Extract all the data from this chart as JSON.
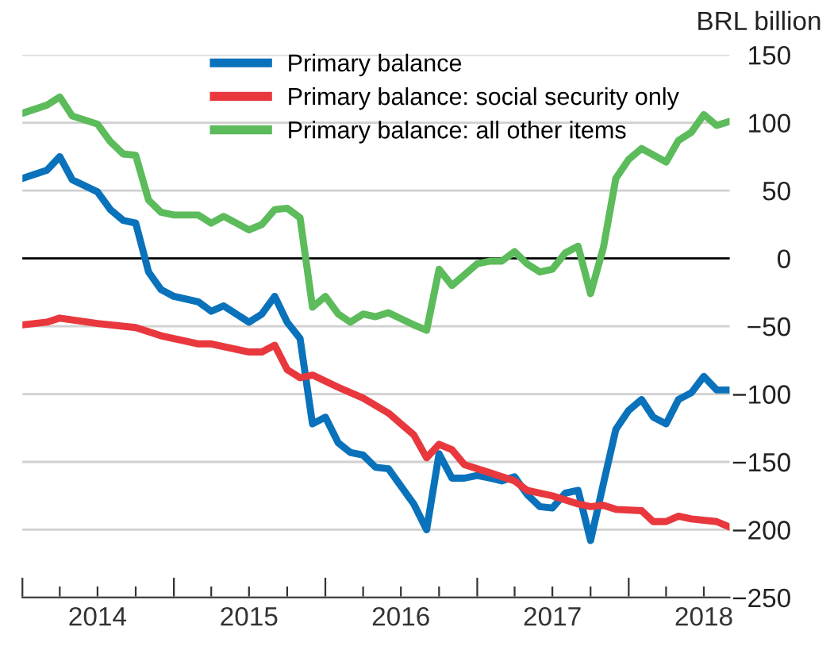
{
  "chart_data": {
    "type": "line",
    "ylabel": "BRL billion",
    "xlim": [
      "2014-01",
      "2018-09"
    ],
    "xticks": [
      {
        "value": "2014-01",
        "label": null
      },
      {
        "value": "2014-04",
        "label": null
      },
      {
        "value": "2014-07",
        "label": "2014"
      },
      {
        "value": "2014-10",
        "label": null
      },
      {
        "value": "2015-01",
        "label": null
      },
      {
        "value": "2015-04",
        "label": null
      },
      {
        "value": "2015-07",
        "label": "2015"
      },
      {
        "value": "2015-10",
        "label": null
      },
      {
        "value": "2016-01",
        "label": null
      },
      {
        "value": "2016-04",
        "label": null
      },
      {
        "value": "2016-07",
        "label": "2016"
      },
      {
        "value": "2016-10",
        "label": null
      },
      {
        "value": "2017-01",
        "label": null
      },
      {
        "value": "2017-04",
        "label": null
      },
      {
        "value": "2017-07",
        "label": "2017"
      },
      {
        "value": "2017-10",
        "label": null
      },
      {
        "value": "2018-01",
        "label": null
      },
      {
        "value": "2018-04",
        "label": null
      },
      {
        "value": "2018-07",
        "label": "2018"
      }
    ],
    "ylim": [
      -250,
      150
    ],
    "yticks": [
      150,
      100,
      50,
      0,
      {
        "value": -50,
        "label": "−50"
      },
      {
        "value": -100,
        "label": "−100"
      },
      {
        "value": -150,
        "label": "−150"
      },
      {
        "value": -200,
        "label": "−200"
      },
      {
        "value": -250,
        "label": "−250"
      }
    ],
    "grid": "y",
    "legend": "top",
    "marker": "none",
    "line_style": "solid",
    "ref_lines": [
      {
        "axis": "y",
        "value": 0,
        "color": "#000000"
      }
    ],
    "series": [
      {
        "name": "Primary balance",
        "color": "#0a72bb",
        "x": [
          "2014-01",
          "2014-03",
          "2014-04",
          "2014-05",
          "2014-07",
          "2014-08",
          "2014-09",
          "2014-10",
          "2014-11",
          "2014-12",
          "2015-01",
          "2015-03",
          "2015-04",
          "2015-05",
          "2015-07",
          "2015-08",
          "2015-09",
          "2015-10",
          "2015-11",
          "2015-12",
          "2016-01",
          "2016-02",
          "2016-03",
          "2016-04",
          "2016-05",
          "2016-06",
          "2016-08",
          "2016-09",
          "2016-10",
          "2016-11",
          "2016-12",
          "2017-01",
          "2017-02",
          "2017-03",
          "2017-04",
          "2017-05",
          "2017-06",
          "2017-07",
          "2017-08",
          "2017-09",
          "2017-10",
          "2017-11",
          "2017-12",
          "2018-01",
          "2018-02",
          "2018-03",
          "2018-04",
          "2018-05",
          "2018-06",
          "2018-07",
          "2018-08",
          "2018-09"
        ],
        "values": [
          59,
          65,
          75,
          58,
          49,
          36,
          28,
          26,
          -10,
          -23,
          -28,
          -32,
          -39,
          -35,
          -47,
          -41,
          -28,
          -47,
          -59,
          -122,
          -117,
          -136,
          -143,
          -145,
          -154,
          -155,
          -181,
          -200,
          -144,
          -162,
          -162,
          -160,
          -162,
          -164,
          -161,
          -174,
          -183,
          -184,
          -173,
          -171,
          -208,
          -166,
          -126,
          -112,
          -104,
          -117,
          -122,
          -104,
          -99,
          -87,
          -97,
          -97
        ]
      },
      {
        "name": "Primary balance: social security only",
        "color": "#e8383d",
        "x": [
          "2014-01",
          "2014-03",
          "2014-04",
          "2014-07",
          "2014-10",
          "2014-12",
          "2015-03",
          "2015-04",
          "2015-07",
          "2015-08",
          "2015-09",
          "2015-10",
          "2015-11",
          "2015-12",
          "2016-02",
          "2016-04",
          "2016-06",
          "2016-08",
          "2016-09",
          "2016-10",
          "2016-11",
          "2016-12",
          "2017-02",
          "2017-04",
          "2017-05",
          "2017-07",
          "2017-09",
          "2017-10",
          "2017-11",
          "2017-12",
          "2018-02",
          "2018-03",
          "2018-04",
          "2018-05",
          "2018-06",
          "2018-08",
          "2018-09"
        ],
        "values": [
          -49,
          -47,
          -44,
          -48,
          -51,
          -57,
          -63,
          -63,
          -69,
          -69,
          -64,
          -82,
          -88,
          -86,
          -95,
          -103,
          -114,
          -130,
          -147,
          -137,
          -141,
          -152,
          -158,
          -164,
          -171,
          -175,
          -181,
          -183,
          -182,
          -185,
          -186,
          -194,
          -194,
          -190,
          -192,
          -194,
          -198
        ]
      },
      {
        "name": "Primary balance: all other items",
        "color": "#5cbb5a",
        "x": [
          "2014-01",
          "2014-03",
          "2014-04",
          "2014-05",
          "2014-07",
          "2014-08",
          "2014-09",
          "2014-10",
          "2014-11",
          "2014-12",
          "2015-01",
          "2015-03",
          "2015-04",
          "2015-05",
          "2015-07",
          "2015-08",
          "2015-09",
          "2015-10",
          "2015-11",
          "2015-12",
          "2016-01",
          "2016-02",
          "2016-03",
          "2016-04",
          "2016-05",
          "2016-06",
          "2016-08",
          "2016-09",
          "2016-10",
          "2016-11",
          "2017-01",
          "2017-02",
          "2017-03",
          "2017-04",
          "2017-05",
          "2017-06",
          "2017-07",
          "2017-08",
          "2017-09",
          "2017-10",
          "2017-11",
          "2017-12",
          "2018-01",
          "2018-02",
          "2018-04",
          "2018-05",
          "2018-06",
          "2018-07",
          "2018-08",
          "2018-09"
        ],
        "values": [
          107,
          113,
          119,
          105,
          99,
          86,
          77,
          76,
          43,
          34,
          32,
          32,
          26,
          31,
          21,
          25,
          36,
          37,
          30,
          -36,
          -28,
          -41,
          -47,
          -41,
          -43,
          -40,
          -49,
          -53,
          -8,
          -20,
          -4,
          -2,
          -2,
          5,
          -4,
          -10,
          -8,
          4,
          9,
          -26,
          8,
          59,
          73,
          81,
          71,
          87,
          93,
          106,
          98,
          101
        ]
      }
    ]
  }
}
